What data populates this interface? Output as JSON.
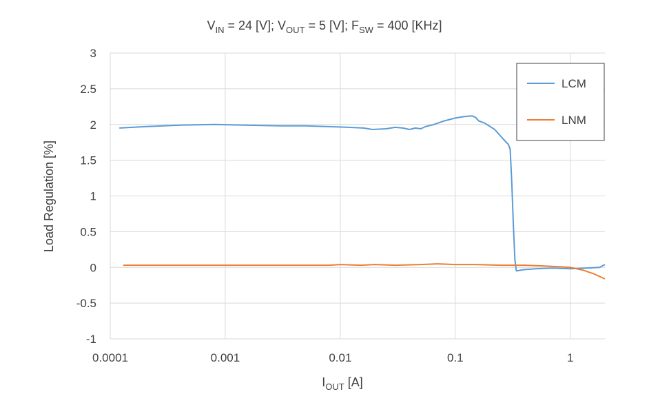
{
  "chart_data": {
    "type": "line",
    "title": "V_IN = 24 [V]; V_OUT = 5 [V]; F_SW = 400 [KHz]",
    "title_parts": [
      {
        "text": "V",
        "sub": "IN"
      },
      {
        "text": " = 24 [V]; V",
        "sub": "OUT"
      },
      {
        "text": " = 5 [V]; F",
        "sub": "SW"
      },
      {
        "text": " = 400 [KHz]",
        "sub": ""
      }
    ],
    "xlabel": "I_OUT [A]",
    "xlabel_parts": {
      "main": "I",
      "sub": "OUT",
      "rest": " [A]"
    },
    "ylabel": "Load Regulation [%]",
    "x_scale": "log",
    "xlim": [
      0.0001,
      2
    ],
    "ylim": [
      -1,
      3
    ],
    "x_ticks": [
      0.0001,
      0.001,
      0.01,
      0.1,
      1
    ],
    "x_tick_labels": [
      "0.0001",
      "0.001",
      "0.01",
      "0.1",
      "1"
    ],
    "y_ticks": [
      -1,
      -0.5,
      0,
      0.5,
      1,
      1.5,
      2,
      2.5,
      3
    ],
    "y_tick_labels": [
      "-1",
      "-0.5",
      "0",
      "0.5",
      "1",
      "1.5",
      "2",
      "2.5",
      "3"
    ],
    "grid": true,
    "legend_position": "top-right",
    "series": [
      {
        "name": "LCM",
        "color": "#5b9bd5",
        "points": [
          [
            0.00012,
            1.95
          ],
          [
            0.0002,
            1.97
          ],
          [
            0.0004,
            1.99
          ],
          [
            0.0008,
            2.0
          ],
          [
            0.0015,
            1.99
          ],
          [
            0.003,
            1.98
          ],
          [
            0.005,
            1.98
          ],
          [
            0.008,
            1.97
          ],
          [
            0.012,
            1.96
          ],
          [
            0.016,
            1.95
          ],
          [
            0.019,
            1.93
          ],
          [
            0.025,
            1.94
          ],
          [
            0.03,
            1.96
          ],
          [
            0.035,
            1.95
          ],
          [
            0.04,
            1.93
          ],
          [
            0.045,
            1.95
          ],
          [
            0.05,
            1.94
          ],
          [
            0.055,
            1.97
          ],
          [
            0.065,
            2.0
          ],
          [
            0.08,
            2.05
          ],
          [
            0.1,
            2.09
          ],
          [
            0.12,
            2.11
          ],
          [
            0.14,
            2.12
          ],
          [
            0.15,
            2.1
          ],
          [
            0.16,
            2.05
          ],
          [
            0.18,
            2.02
          ],
          [
            0.22,
            1.93
          ],
          [
            0.26,
            1.8
          ],
          [
            0.29,
            1.72
          ],
          [
            0.3,
            1.65
          ],
          [
            0.31,
            1.2
          ],
          [
            0.32,
            0.6
          ],
          [
            0.33,
            0.1
          ],
          [
            0.34,
            -0.05
          ],
          [
            0.4,
            -0.03
          ],
          [
            0.5,
            -0.02
          ],
          [
            0.7,
            -0.01
          ],
          [
            1.0,
            -0.02
          ],
          [
            1.4,
            -0.01
          ],
          [
            1.8,
            0.0
          ],
          [
            2.0,
            0.04
          ]
        ]
      },
      {
        "name": "LNM",
        "color": "#ed7d31",
        "points": [
          [
            0.00013,
            0.03
          ],
          [
            0.0003,
            0.03
          ],
          [
            0.0008,
            0.03
          ],
          [
            0.002,
            0.03
          ],
          [
            0.005,
            0.03
          ],
          [
            0.008,
            0.03
          ],
          [
            0.01,
            0.04
          ],
          [
            0.015,
            0.03
          ],
          [
            0.02,
            0.04
          ],
          [
            0.03,
            0.03
          ],
          [
            0.05,
            0.04
          ],
          [
            0.07,
            0.05
          ],
          [
            0.1,
            0.04
          ],
          [
            0.15,
            0.04
          ],
          [
            0.25,
            0.03
          ],
          [
            0.4,
            0.03
          ],
          [
            0.6,
            0.02
          ],
          [
            0.8,
            0.01
          ],
          [
            1.0,
            0.0
          ],
          [
            1.3,
            -0.04
          ],
          [
            1.6,
            -0.09
          ],
          [
            2.0,
            -0.16
          ]
        ]
      }
    ]
  }
}
